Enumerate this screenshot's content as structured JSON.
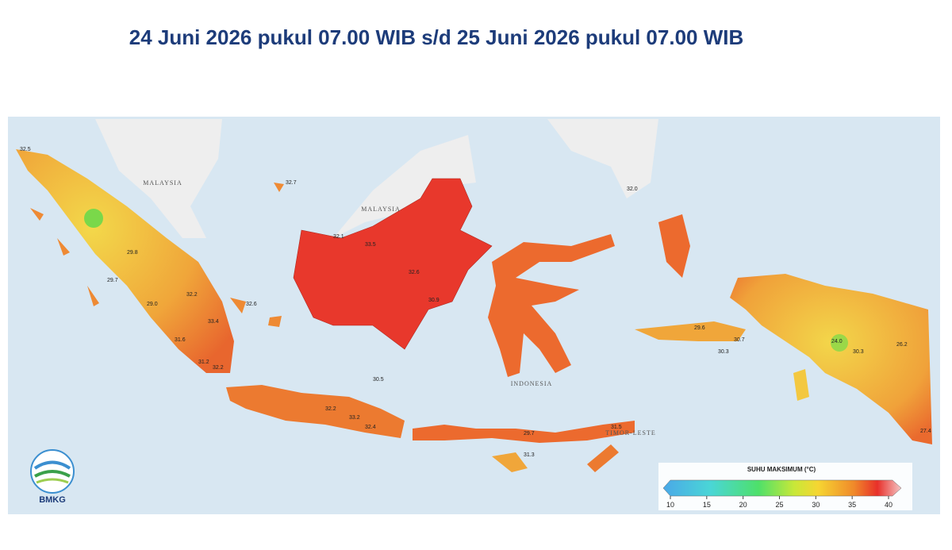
{
  "title": "24 Juni 2026 pukul 07.00 WIB s/d 25 Juni 2026 pukul 07.00 WIB",
  "logo": "BMKG",
  "places": [
    "MALAYSIA",
    "MALAYSIA",
    "INDONESIA",
    "TIMOR-LESTE"
  ],
  "value_labels": [
    "32.5",
    "29.8",
    "29.7",
    "29.0",
    "32.2",
    "33.4",
    "32.1",
    "33.5",
    "32.6",
    "31.6",
    "31.2",
    "30.5",
    "33.2",
    "32.4",
    "32.2",
    "29.7",
    "31.3",
    "29.6",
    "30.7",
    "30.3",
    "24.0",
    "26.2",
    "30.3",
    "27.4",
    "32.0",
    "32.7",
    "32.2",
    "31.5",
    "32.6",
    "30.9"
  ],
  "legend": {
    "title": "SUHU MAKSIMUM (°C)",
    "ticks": [
      10,
      15,
      20,
      25,
      30,
      35,
      40
    ]
  }
}
